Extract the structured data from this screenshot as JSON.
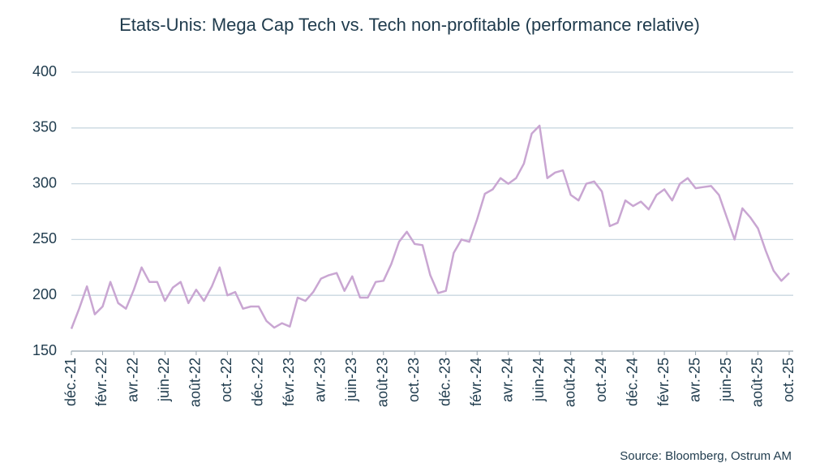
{
  "chart_data": {
    "type": "line",
    "title": "Etats-Unis: Mega Cap Tech vs. Tech non-profitable (performance relative)",
    "source": "Source: Bloomberg,  Ostrum  AM",
    "categories": [
      "déc.-21",
      null,
      null,
      null,
      "févr.-22",
      null,
      null,
      null,
      "avr.-22",
      null,
      null,
      null,
      "juin-22",
      null,
      null,
      null,
      "août-22",
      null,
      null,
      null,
      "oct.-22",
      null,
      null,
      null,
      "déc.-22",
      null,
      null,
      null,
      "févr.-23",
      null,
      null,
      null,
      "avr.-23",
      null,
      null,
      null,
      "juin-23",
      null,
      null,
      null,
      "août-23",
      null,
      null,
      null,
      "oct.-23",
      null,
      null,
      null,
      "déc.-23",
      null,
      null,
      null,
      "févr.-24",
      null,
      null,
      null,
      "avr.-24",
      null,
      null,
      null,
      "juin-24",
      null,
      null,
      null,
      "août-24",
      null,
      null,
      null,
      "oct.-24",
      null,
      null,
      null,
      "déc.-24",
      null,
      null,
      null,
      "févr.-25",
      null,
      null,
      null,
      "avr.-25",
      null,
      null,
      null,
      "juin-25",
      null,
      null,
      null,
      "août-25",
      null,
      null,
      null,
      "oct.-25"
    ],
    "values": [
      170,
      188,
      208,
      183,
      190,
      212,
      193,
      188,
      205,
      225,
      212,
      212,
      195,
      207,
      212,
      193,
      205,
      195,
      208,
      225,
      200,
      203,
      188,
      190,
      190,
      177,
      171,
      175,
      172,
      198,
      195,
      203,
      215,
      218,
      220,
      204,
      217,
      198,
      198,
      212,
      213,
      228,
      248,
      257,
      246,
      245,
      218,
      202,
      204,
      238,
      250,
      248,
      268,
      291,
      295,
      305,
      300,
      305,
      318,
      345,
      352,
      305,
      310,
      312,
      290,
      285,
      300,
      302,
      293,
      262,
      265,
      285,
      280,
      284,
      277,
      290,
      295,
      285,
      300,
      305,
      296,
      297,
      298,
      290,
      270,
      250,
      278,
      270,
      260,
      240,
      222,
      213,
      220
    ],
    "color": "#c9a6d2",
    "ylim": [
      150,
      400
    ],
    "yticks": [
      150,
      200,
      250,
      300,
      350,
      400
    ],
    "grid": true
  }
}
